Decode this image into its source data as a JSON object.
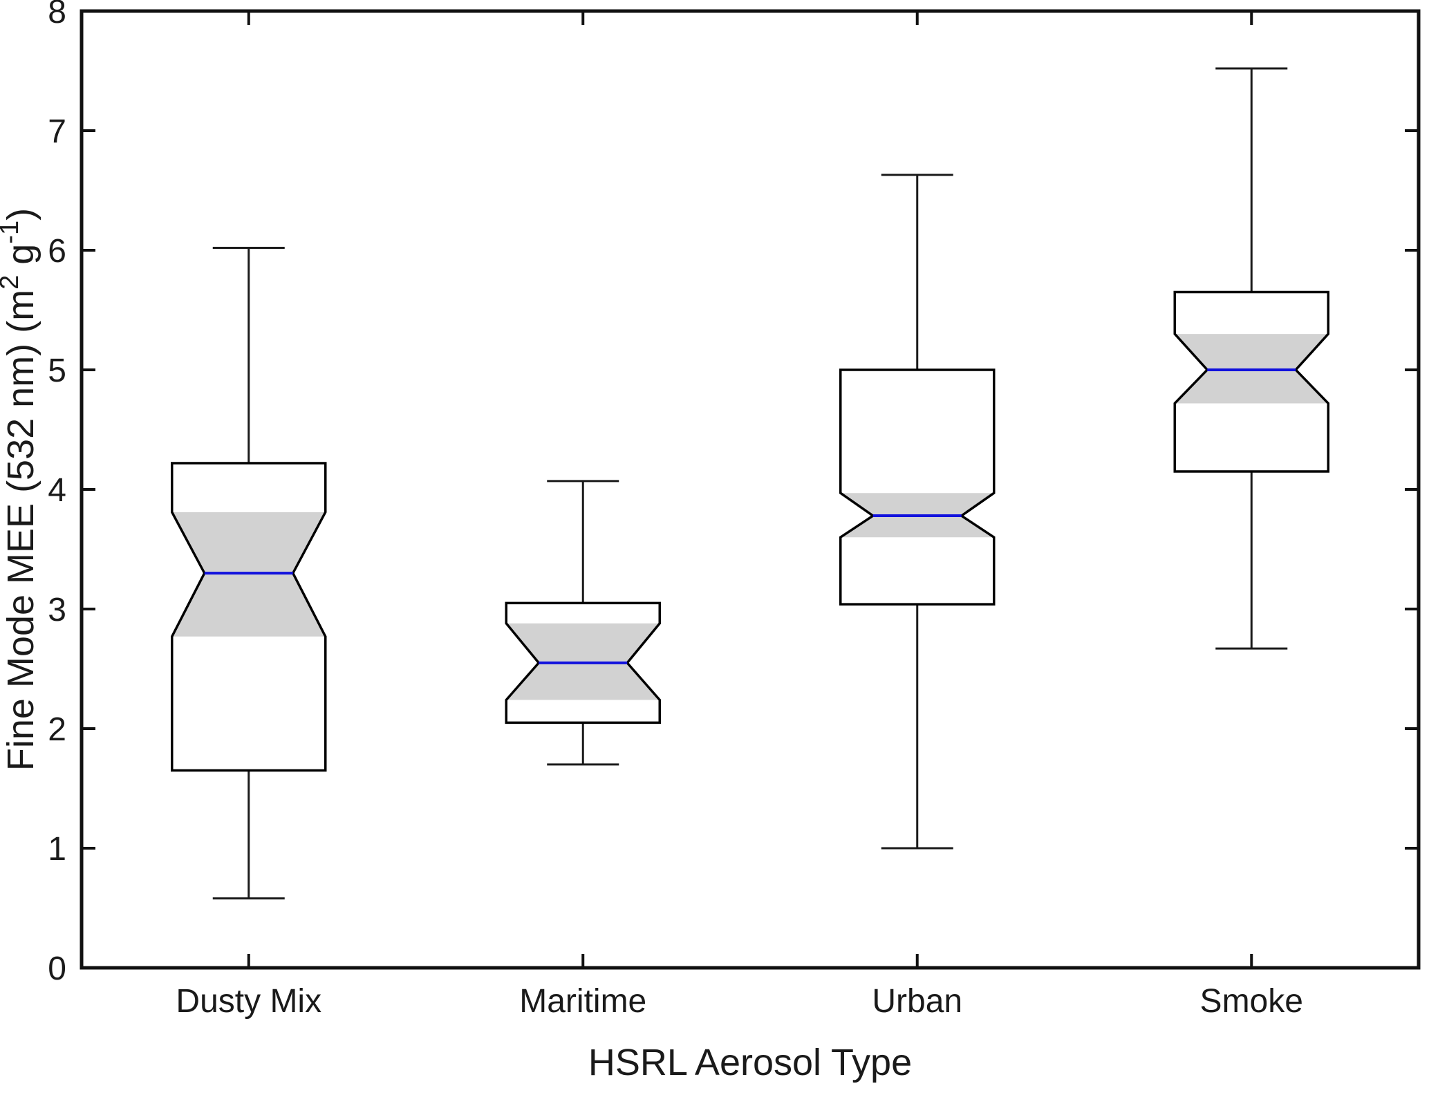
{
  "figure": {
    "background": "#ffffff"
  },
  "chart_data": {
    "type": "box",
    "notched": true,
    "title": "",
    "xlabel": "HSRL Aerosol Type",
    "ylabel": "Fine Mode MEE (532 nm) (m^2 g^-1)",
    "ylabel_parts": [
      {
        "text": "Fine Mode MEE (532 nm) (m",
        "super": false
      },
      {
        "text": "2",
        "super": true
      },
      {
        "text": " g",
        "super": false
      },
      {
        "text": "-1",
        "super": true
      },
      {
        "text": ")",
        "super": false
      }
    ],
    "categories": [
      "Dusty Mix",
      "Maritime",
      "Urban",
      "Smoke"
    ],
    "yticks": [
      "0",
      "1",
      "2",
      "3",
      "4",
      "5",
      "6",
      "7",
      "8"
    ],
    "ylim": [
      0,
      8
    ],
    "grid": false,
    "series": [
      {
        "name": "Dusty Mix",
        "whisker_low": 0.58,
        "q1": 1.65,
        "notch_low": 2.77,
        "median": 3.3,
        "notch_high": 3.81,
        "q3": 4.22,
        "whisker_high": 6.02
      },
      {
        "name": "Maritime",
        "whisker_low": 1.7,
        "q1": 2.05,
        "notch_low": 2.24,
        "median": 2.55,
        "notch_high": 2.88,
        "q3": 3.05,
        "whisker_high": 4.07
      },
      {
        "name": "Urban",
        "whisker_low": 1.0,
        "q1": 3.04,
        "notch_low": 3.6,
        "median": 3.78,
        "notch_high": 3.97,
        "q3": 5.0,
        "whisker_high": 6.63
      },
      {
        "name": "Smoke",
        "whisker_low": 2.67,
        "q1": 4.15,
        "notch_low": 4.72,
        "median": 5.0,
        "notch_high": 5.3,
        "q3": 5.65,
        "whisker_high": 7.52
      }
    ],
    "colors": {
      "box_outline": "#000000",
      "box_fill": "#ffffff",
      "median": "#1111dd",
      "notch_fill": "#d2d2d2",
      "whisker": "#1a1a1a",
      "axis": "#111111",
      "text": "#1a1a1a"
    }
  }
}
